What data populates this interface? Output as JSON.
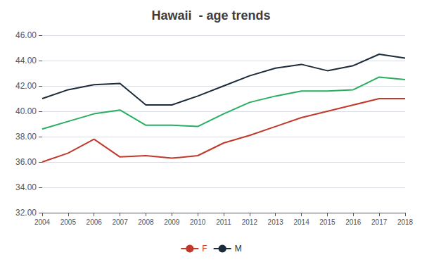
{
  "chart_data": {
    "type": "line",
    "title": "Hawaii  - age trends",
    "x": [
      2004,
      2005,
      2006,
      2007,
      2008,
      2009,
      2010,
      2011,
      2012,
      2013,
      2014,
      2015,
      2016,
      2017,
      2018
    ],
    "xlim": [
      2004,
      2018
    ],
    "xticks": [
      2004,
      2005,
      2006,
      2007,
      2008,
      2009,
      2010,
      2011,
      2012,
      2013,
      2014,
      2015,
      2016,
      2017,
      2018
    ],
    "series": [
      {
        "name": "F",
        "color": "#c0392b",
        "values": [
          36.0,
          36.7,
          37.8,
          36.4,
          36.5,
          36.3,
          36.5,
          37.5,
          38.1,
          38.8,
          39.5,
          40.0,
          40.5,
          41.0,
          41.0
        ]
      },
      {
        "name": "M",
        "color": "#1c2b3a",
        "values": [
          41.0,
          41.7,
          42.1,
          42.2,
          40.5,
          40.5,
          41.2,
          42.0,
          42.8,
          43.4,
          43.7,
          43.2,
          43.6,
          44.5,
          44.2
        ]
      },
      {
        "color": "#27ae60",
        "values": [
          38.6,
          39.2,
          39.8,
          40.1,
          38.9,
          38.9,
          38.8,
          39.8,
          40.7,
          41.2,
          41.6,
          41.6,
          41.7,
          42.7,
          42.5
        ]
      }
    ],
    "ylim": [
      32.0,
      46.0
    ],
    "yticks": [
      {
        "value": 32.0,
        "label": "32.00"
      },
      {
        "value": 34.0,
        "label": "34.00"
      },
      {
        "value": 36.0,
        "label": "36.00"
      },
      {
        "value": 38.0,
        "label": "38.00"
      },
      {
        "value": 40.0,
        "label": "40.00"
      },
      {
        "value": 42.0,
        "label": "42.00"
      },
      {
        "value": 44.0,
        "label": "44.00"
      },
      {
        "value": 46.0,
        "label": "46.00"
      }
    ],
    "grid": true,
    "legend": "bottom"
  }
}
